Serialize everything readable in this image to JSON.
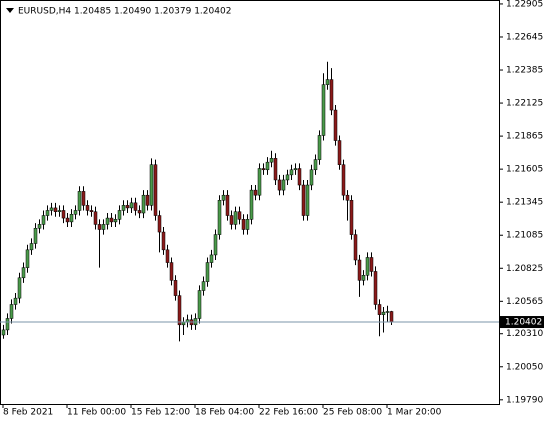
{
  "chart_data": {
    "type": "candlestick",
    "title": "EURUSD,H4  1.20485 1.20490 1.20379 1.20402",
    "categories": [
      "8 Feb 2021",
      null,
      null,
      null,
      null,
      null,
      null,
      null,
      null,
      null,
      null,
      null,
      null,
      null,
      null,
      null,
      "11 Feb 00:00",
      null,
      null,
      null,
      null,
      null,
      null,
      null,
      null,
      null,
      null,
      null,
      null,
      null,
      null,
      null,
      "15 Feb 12:00",
      null,
      null,
      null,
      null,
      null,
      null,
      null,
      null,
      null,
      null,
      null,
      null,
      null,
      null,
      null,
      "18 Feb 04:00",
      null,
      null,
      null,
      null,
      null,
      null,
      null,
      null,
      null,
      null,
      null,
      null,
      null,
      null,
      null,
      "22 Feb 16:00",
      null,
      null,
      null,
      null,
      null,
      null,
      null,
      null,
      null,
      null,
      null,
      null,
      null,
      null,
      null,
      "25 Feb 08:00",
      null,
      null,
      null,
      null,
      null,
      null,
      null,
      null,
      null,
      null,
      null,
      null,
      null,
      null,
      null,
      "1 Mar 20:00",
      null
    ],
    "open": [
      1.203,
      1.2034,
      1.2043,
      1.2054,
      1.2059,
      1.2075,
      1.2083,
      1.2097,
      1.2102,
      1.2114,
      1.2117,
      1.2124,
      1.2128,
      1.213,
      1.2127,
      1.2128,
      1.2122,
      1.2119,
      1.2125,
      1.2128,
      1.2143,
      1.2132,
      1.2128,
      1.2127,
      1.2117,
      1.2113,
      1.2117,
      1.2122,
      1.2119,
      1.2121,
      1.2128,
      1.2132,
      1.213,
      1.2134,
      1.2128,
      1.2126,
      1.214,
      1.2132,
      1.2164,
      1.2124,
      1.2111,
      1.2097,
      1.2087,
      1.2073,
      1.2061,
      1.2038,
      1.204,
      1.2042,
      1.2038,
      1.2043,
      1.2065,
      1.2072,
      1.2087,
      1.2093,
      1.2109,
      1.2136,
      1.214,
      1.2124,
      1.2117,
      1.2127,
      1.2121,
      1.2113,
      1.2121,
      1.2144,
      1.214,
      1.2161,
      1.216,
      1.2166,
      1.2169,
      1.2152,
      1.2144,
      1.2152,
      1.2156,
      1.216,
      1.2161,
      1.2148,
      1.2124,
      1.2148,
      1.216,
      1.2168,
      1.2187,
      1.2227,
      1.2231,
      1.2207,
      1.2183,
      1.2164,
      1.214,
      1.2136,
      1.2109,
      1.2089,
      1.2073,
      1.2077,
      1.2091,
      1.208,
      1.2054,
      1.2046,
      1.2048,
      1.20485
    ],
    "high": [
      1.2038,
      1.2047,
      1.2058,
      1.2063,
      1.2079,
      1.2087,
      1.2101,
      1.2106,
      1.2118,
      1.2121,
      1.2128,
      1.2132,
      1.2134,
      1.2134,
      1.2132,
      1.2132,
      1.2126,
      1.2129,
      1.2132,
      1.2147,
      1.2147,
      1.2136,
      1.2132,
      1.2131,
      1.2121,
      1.2121,
      1.2126,
      1.2126,
      1.2125,
      1.2132,
      1.2136,
      1.2136,
      1.2138,
      1.2138,
      1.2132,
      1.2144,
      1.2144,
      1.2169,
      1.2168,
      1.2128,
      1.2115,
      1.2101,
      1.2091,
      1.2077,
      1.2065,
      1.2044,
      1.2046,
      1.2046,
      1.2047,
      1.2069,
      1.2076,
      1.2091,
      1.2097,
      1.2113,
      1.214,
      1.2144,
      1.2144,
      1.2128,
      1.2131,
      1.2131,
      1.2125,
      1.2125,
      1.2148,
      1.2148,
      1.2165,
      1.2165,
      1.217,
      1.2175,
      1.2173,
      1.2156,
      1.2156,
      1.216,
      1.2164,
      1.2165,
      1.2165,
      1.2152,
      1.2152,
      1.2164,
      1.2172,
      1.2191,
      1.2236,
      1.2245,
      1.224,
      1.2211,
      1.2187,
      1.2168,
      1.2144,
      1.214,
      1.2113,
      1.2093,
      1.2081,
      1.2095,
      1.2095,
      1.2084,
      1.2058,
      1.2052,
      1.2053,
      1.2049
    ],
    "low": [
      1.2027,
      1.203,
      1.2039,
      1.205,
      1.2055,
      1.2071,
      1.2079,
      1.2093,
      1.2098,
      1.211,
      1.2113,
      1.212,
      1.2124,
      1.2123,
      1.2123,
      1.2118,
      1.2115,
      1.2115,
      1.2121,
      1.2124,
      1.2128,
      1.2124,
      1.2123,
      1.2113,
      1.2083,
      1.2109,
      1.2113,
      1.2115,
      1.2115,
      1.2117,
      1.2124,
      1.2126,
      1.2126,
      1.2124,
      1.2122,
      1.2122,
      1.2128,
      1.2128,
      1.212,
      1.2095,
      1.2093,
      1.2083,
      1.2069,
      1.2057,
      1.2025,
      1.203,
      1.2036,
      1.2034,
      1.2034,
      1.2039,
      1.2061,
      1.2068,
      1.2083,
      1.2089,
      1.2105,
      1.2132,
      1.212,
      1.2113,
      1.2113,
      1.2117,
      1.2109,
      1.2109,
      1.2117,
      1.2136,
      1.2136,
      1.2156,
      1.2156,
      1.2162,
      1.2148,
      1.214,
      1.214,
      1.2148,
      1.2152,
      1.2156,
      1.2144,
      1.212,
      1.212,
      1.2144,
      1.2156,
      1.2164,
      1.2183,
      1.2223,
      1.2203,
      1.2179,
      1.216,
      1.2136,
      1.212,
      1.2105,
      1.2085,
      1.206,
      1.2069,
      1.2073,
      1.2076,
      1.205,
      1.2029,
      1.2032,
      1.204,
      1.20379
    ],
    "close": [
      1.2034,
      1.2043,
      1.2054,
      1.2059,
      1.2075,
      1.2083,
      1.2097,
      1.2102,
      1.2114,
      1.2117,
      1.2124,
      1.2128,
      1.213,
      1.2127,
      1.2128,
      1.2122,
      1.2119,
      1.2125,
      1.2128,
      1.2143,
      1.2132,
      1.2128,
      1.2127,
      1.2117,
      1.2113,
      1.2117,
      1.2122,
      1.2119,
      1.2121,
      1.2128,
      1.2132,
      1.213,
      1.2134,
      1.2128,
      1.2126,
      1.214,
      1.2132,
      1.2164,
      1.2124,
      1.2111,
      1.2097,
      1.2087,
      1.2073,
      1.2061,
      1.2038,
      1.204,
      1.2042,
      1.2038,
      1.2043,
      1.2065,
      1.2072,
      1.2087,
      1.2093,
      1.2109,
      1.2136,
      1.214,
      1.2124,
      1.2117,
      1.2127,
      1.2121,
      1.2113,
      1.2121,
      1.2144,
      1.214,
      1.2161,
      1.216,
      1.2166,
      1.2169,
      1.2152,
      1.2144,
      1.2152,
      1.2156,
      1.216,
      1.2161,
      1.2148,
      1.2124,
      1.2148,
      1.216,
      1.2168,
      1.2187,
      1.2227,
      1.2231,
      1.2207,
      1.2183,
      1.2164,
      1.214,
      1.2136,
      1.2109,
      1.2089,
      1.2073,
      1.2077,
      1.2091,
      1.208,
      1.2054,
      1.2046,
      1.2048,
      1.20485,
      1.20402
    ],
    "up_color": "#4a9a4a",
    "down_color": "#8b1a1a",
    "wick_color": "#000000",
    "current_price": 1.20402,
    "current_price_color": "#7b96a8",
    "ylim": [
      1.19757,
      1.22936
    ],
    "yticks": [
      1.22905,
      1.22645,
      1.22385,
      1.22125,
      1.21865,
      1.21605,
      1.21345,
      1.21085,
      1.20825,
      1.20565,
      {
        "value": 1.2031,
        "label": "1.20310"
      },
      {
        "value": 1.2005,
        "label": "1.20050"
      },
      {
        "value": 1.1979,
        "label": "1.19790"
      }
    ],
    "grid": false
  }
}
